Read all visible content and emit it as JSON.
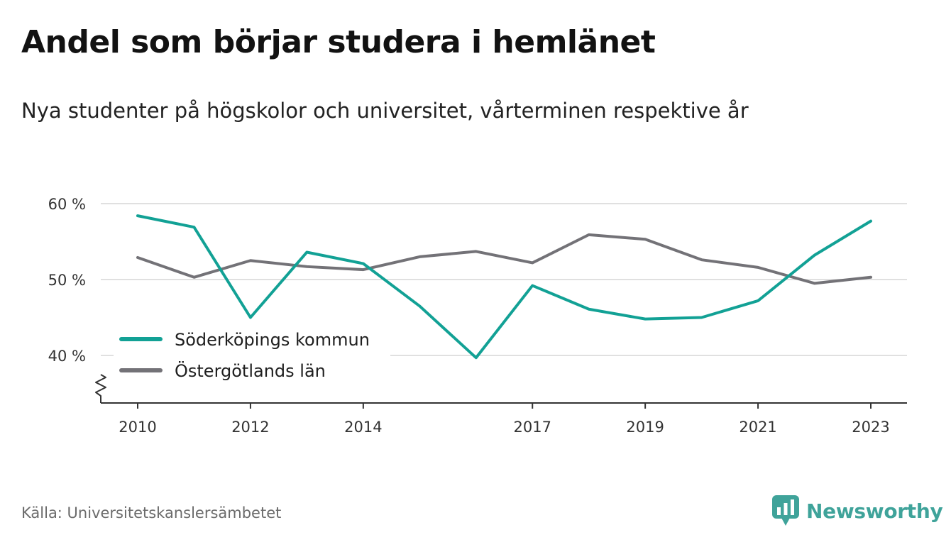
{
  "header": {
    "title": "Andel som börjar studera i hemlänet",
    "subtitle": "Nya studenter på högskolor och universitet, vårterminen respektive år"
  },
  "footer": {
    "source": "Källa: Universitetskanslersämbetet",
    "brand": "Newsworthy"
  },
  "colors": {
    "series_1": "#12a195",
    "series_2": "#737277",
    "grid": "#d6d6d6",
    "axis": "#333333",
    "brand": "#3fa39a"
  },
  "chart_data": {
    "type": "line",
    "x": [
      2010,
      2011,
      2012,
      2013,
      2014,
      2015,
      2016,
      2017,
      2018,
      2019,
      2020,
      2021,
      2022,
      2023
    ],
    "x_tick_labels": [
      "2010",
      "2012",
      "2014",
      "2017",
      "2019",
      "2021",
      "2023"
    ],
    "y_ticks": [
      40,
      50,
      60
    ],
    "y_tick_labels": [
      "40 %",
      "50 %",
      "60 %"
    ],
    "ylim": [
      34,
      61
    ],
    "y_axis_break": true,
    "grid": "horizontal",
    "legend_position": "bottom-left",
    "series": [
      {
        "name": "Söderköpings kommun",
        "color": "#12a195",
        "values": [
          58.4,
          56.9,
          45.0,
          53.6,
          52.1,
          46.5,
          39.7,
          49.2,
          46.1,
          44.8,
          45.0,
          47.2,
          53.2,
          57.7
        ]
      },
      {
        "name": "Östergötlands län",
        "color": "#737277",
        "values": [
          52.9,
          50.3,
          52.5,
          51.7,
          51.3,
          53.0,
          53.7,
          52.2,
          55.9,
          55.3,
          52.6,
          51.6,
          49.5,
          50.3
        ]
      }
    ]
  }
}
